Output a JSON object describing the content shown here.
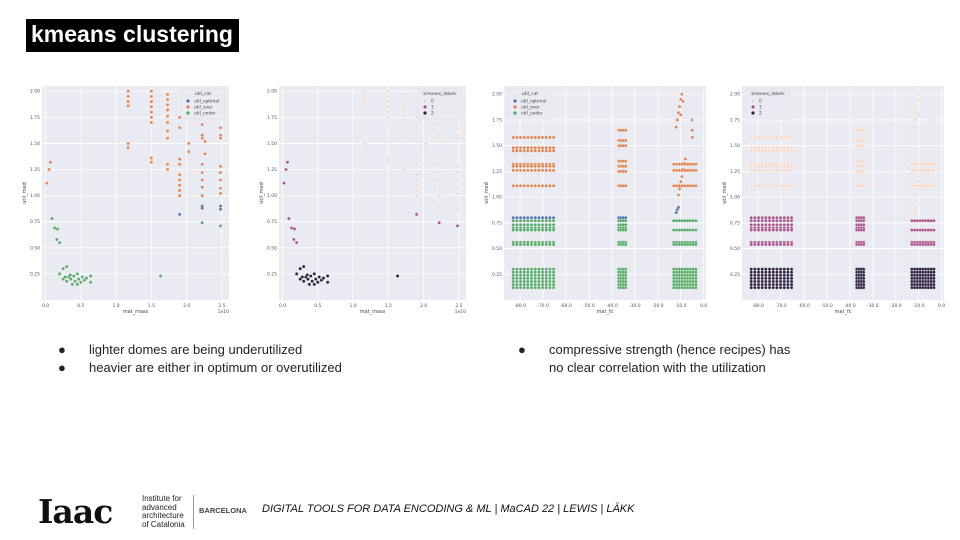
{
  "title": "kmeans clustering",
  "bullets_left": [
    "lighter domes are being underutilized",
    "heavier are either in optimum or overutilized"
  ],
  "bullets_right": [
    "compressive strength (hence recipes) has no clear correlation with the utilization"
  ],
  "bullet_symbol": "●",
  "footer": {
    "logo": "Iaac",
    "institute": [
      "Institute for",
      "advanced",
      "architecture",
      "of Catalonia"
    ],
    "city": "BARCELONA",
    "course": "DIGITAL TOOLS FOR DATA ENCODING & ML | MaCAD 22 | LEWIS | LÄKK"
  },
  "colors": {
    "util_optimal": "#4c72b0",
    "util_over": "#dd8452",
    "util_under": "#55a868",
    "k0": "#f5d6c6",
    "k1": "#a8558a",
    "k2": "#2d1e3e",
    "bg": "#eaeaf2"
  },
  "chart_data": [
    {
      "type": "scatter",
      "xlabel": "mat_mass",
      "ylabel": "util_med",
      "xlim": [
        -0.05,
        2.6
      ],
      "ylim": [
        0,
        2.05
      ],
      "xticks": [
        0.0,
        0.5,
        1.0,
        1.5,
        2.0,
        2.5
      ],
      "yticks": [
        0.25,
        0.5,
        0.75,
        1.0,
        1.25,
        1.5,
        1.75,
        2.0
      ],
      "corner_label": "1e10",
      "legend_title": "util_cat",
      "legend": [
        "util_optimal",
        "util_over",
        "util_under"
      ],
      "legend_pos": "top-right",
      "hue": "cat",
      "points": [
        [
          0.02,
          1.12,
          "util_over"
        ],
        [
          0.05,
          1.25,
          "util_over"
        ],
        [
          0.07,
          1.32,
          "util_over"
        ],
        [
          0.09,
          0.78,
          "util_under"
        ],
        [
          0.13,
          0.69,
          "util_under"
        ],
        [
          0.17,
          0.68,
          "util_under"
        ],
        [
          0.16,
          0.58,
          "util_under"
        ],
        [
          0.2,
          0.55,
          "util_under"
        ],
        [
          0.2,
          0.25,
          "util_under"
        ],
        [
          0.25,
          0.3,
          "util_under"
        ],
        [
          0.3,
          0.32,
          "util_under"
        ],
        [
          0.25,
          0.2,
          "util_under"
        ],
        [
          0.3,
          0.18,
          "util_under"
        ],
        [
          0.33,
          0.22,
          "util_under"
        ],
        [
          0.36,
          0.2,
          "util_under"
        ],
        [
          0.38,
          0.15,
          "util_under"
        ],
        [
          0.4,
          0.23,
          "util_under"
        ],
        [
          0.42,
          0.18,
          "util_under"
        ],
        [
          0.45,
          0.25,
          "util_under"
        ],
        [
          0.47,
          0.2,
          "util_under"
        ],
        [
          0.5,
          0.17,
          "util_under"
        ],
        [
          0.52,
          0.22,
          "util_under"
        ],
        [
          0.55,
          0.19,
          "util_under"
        ],
        [
          0.58,
          0.21,
          "util_under"
        ],
        [
          0.64,
          0.23,
          "util_under"
        ],
        [
          0.64,
          0.17,
          "util_under"
        ],
        [
          0.35,
          0.24,
          "util_under"
        ],
        [
          0.28,
          0.22,
          "util_under"
        ],
        [
          0.45,
          0.15,
          "util_under"
        ],
        [
          1.63,
          0.23,
          "util_under"
        ],
        [
          2.22,
          0.74,
          "util_under"
        ],
        [
          2.48,
          0.71,
          "util_under"
        ],
        [
          1.17,
          2.0,
          "util_over"
        ],
        [
          1.17,
          1.95,
          "util_over"
        ],
        [
          1.17,
          1.9,
          "util_over"
        ],
        [
          1.17,
          1.86,
          "util_over"
        ],
        [
          1.17,
          1.5,
          "util_over"
        ],
        [
          1.17,
          1.46,
          "util_over"
        ],
        [
          1.5,
          2.0,
          "util_over"
        ],
        [
          1.5,
          1.95,
          "util_over"
        ],
        [
          1.5,
          1.9,
          "util_over"
        ],
        [
          1.5,
          1.85,
          "util_over"
        ],
        [
          1.5,
          1.8,
          "util_over"
        ],
        [
          1.5,
          1.75,
          "util_over"
        ],
        [
          1.5,
          1.7,
          "util_over"
        ],
        [
          1.5,
          1.36,
          "util_over"
        ],
        [
          1.5,
          1.32,
          "util_over"
        ],
        [
          1.73,
          1.97,
          "util_over"
        ],
        [
          1.73,
          1.92,
          "util_over"
        ],
        [
          1.73,
          1.87,
          "util_over"
        ],
        [
          1.73,
          1.82,
          "util_over"
        ],
        [
          1.73,
          1.76,
          "util_over"
        ],
        [
          1.73,
          1.7,
          "util_over"
        ],
        [
          1.73,
          1.62,
          "util_over"
        ],
        [
          1.73,
          1.55,
          "util_over"
        ],
        [
          1.73,
          1.3,
          "util_over"
        ],
        [
          1.73,
          1.25,
          "util_over"
        ],
        [
          1.9,
          1.75,
          "util_over"
        ],
        [
          1.9,
          1.65,
          "util_over"
        ],
        [
          1.9,
          1.35,
          "util_over"
        ],
        [
          1.9,
          1.3,
          "util_over"
        ],
        [
          1.9,
          1.2,
          "util_over"
        ],
        [
          1.9,
          1.15,
          "util_over"
        ],
        [
          1.9,
          1.1,
          "util_over"
        ],
        [
          1.9,
          1.05,
          "util_over"
        ],
        [
          1.9,
          1.0,
          "util_over"
        ],
        [
          2.03,
          1.42,
          "util_over"
        ],
        [
          2.03,
          1.5,
          "util_over"
        ],
        [
          2.22,
          1.68,
          "util_over"
        ],
        [
          2.22,
          1.58,
          "util_over"
        ],
        [
          2.22,
          1.55,
          "util_over"
        ],
        [
          2.22,
          1.3,
          "util_over"
        ],
        [
          2.22,
          1.22,
          "util_over"
        ],
        [
          2.22,
          1.15,
          "util_over"
        ],
        [
          2.22,
          1.08,
          "util_over"
        ],
        [
          2.22,
          1.0,
          "util_over"
        ],
        [
          2.26,
          1.4,
          "util_over"
        ],
        [
          2.26,
          1.52,
          "util_over"
        ],
        [
          2.48,
          1.65,
          "util_over"
        ],
        [
          2.48,
          1.58,
          "util_over"
        ],
        [
          2.48,
          1.55,
          "util_over"
        ],
        [
          2.48,
          1.28,
          "util_over"
        ],
        [
          2.48,
          1.22,
          "util_over"
        ],
        [
          2.48,
          1.15,
          "util_over"
        ],
        [
          2.48,
          1.07,
          "util_over"
        ],
        [
          2.48,
          1.02,
          "util_over"
        ],
        [
          1.9,
          0.82,
          "util_optimal"
        ],
        [
          2.22,
          0.9,
          "util_optimal"
        ],
        [
          2.22,
          0.88,
          "util_optimal"
        ],
        [
          2.48,
          0.9,
          "util_optimal"
        ],
        [
          2.48,
          0.87,
          "util_optimal"
        ]
      ]
    },
    {
      "type": "scatter",
      "xlabel": "mat_mass",
      "ylabel": "util_med",
      "xlim": [
        -0.05,
        2.6
      ],
      "ylim": [
        0,
        2.05
      ],
      "xticks": [
        0.0,
        0.5,
        1.0,
        1.5,
        2.0,
        2.5
      ],
      "yticks": [
        0.25,
        0.5,
        0.75,
        1.0,
        1.25,
        1.5,
        1.75,
        2.0
      ],
      "corner_label": "1e10",
      "legend_title": "kmeans_labels",
      "legend": [
        "0",
        "1",
        "2"
      ],
      "legend_pos": "top-right",
      "hue": "kmeans",
      "same_points_as": 0
    },
    {
      "type": "scatter",
      "xlabel": "mat_fc",
      "ylabel": "util_med",
      "xlim": [
        -87,
        1
      ],
      "ylim": [
        0,
        2.08
      ],
      "xticks": [
        -80,
        -70,
        -60,
        -50,
        -40,
        -30,
        -20,
        -10,
        0
      ],
      "yticks": [
        0.25,
        0.5,
        0.75,
        1.0,
        1.25,
        1.5,
        1.75,
        2.0
      ],
      "legend_title": "util_cat",
      "legend": [
        "util_optimal",
        "util_over",
        "util_under"
      ],
      "legend_pos": "top-left",
      "hue": "cat",
      "segments": {
        "L": [
          -83,
          -65,
          1.6
        ],
        "M": [
          -37,
          -34,
          1
        ],
        "R": [
          -13,
          -3,
          1.2
        ]
      },
      "rows": [
        [
          1.58,
          "util_over",
          "L"
        ],
        [
          1.48,
          "util_over",
          "L"
        ],
        [
          1.45,
          "util_over",
          "L"
        ],
        [
          1.32,
          "util_over",
          "LR"
        ],
        [
          1.3,
          "util_over",
          "L"
        ],
        [
          1.26,
          "util_over",
          "LR"
        ],
        [
          1.11,
          "util_over",
          "LMR"
        ],
        [
          1.65,
          "util_over",
          "M"
        ],
        [
          1.55,
          "util_over",
          "M"
        ],
        [
          1.5,
          "util_over",
          "M"
        ],
        [
          1.35,
          "util_over",
          "M"
        ],
        [
          1.3,
          "util_over",
          "M"
        ],
        [
          1.25,
          "util_over",
          "M"
        ],
        [
          0.8,
          "util_optimal",
          "LM"
        ],
        [
          0.77,
          "util_under",
          "LMR"
        ],
        [
          0.73,
          "util_under",
          "LM"
        ],
        [
          0.7,
          "util_under",
          "LM"
        ],
        [
          0.68,
          "util_under",
          "LMR"
        ],
        [
          0.56,
          "util_under",
          "LMR"
        ],
        [
          0.54,
          "util_under",
          "LMR"
        ],
        [
          0.3,
          "util_under",
          "LMR"
        ],
        [
          0.27,
          "util_under",
          "LMR"
        ],
        [
          0.24,
          "util_under",
          "LMR"
        ],
        [
          0.21,
          "util_under",
          "LMR"
        ],
        [
          0.18,
          "util_under",
          "LMR"
        ],
        [
          0.15,
          "util_under",
          "LMR"
        ],
        [
          0.12,
          "util_under",
          "LMR"
        ]
      ],
      "points": [
        [
          -12,
          1.68,
          "util_over"
        ],
        [
          -11.5,
          1.75,
          "util_over"
        ],
        [
          -11,
          1.82,
          "util_over"
        ],
        [
          -10.5,
          1.88,
          "util_over"
        ],
        [
          -10,
          1.95,
          "util_over"
        ],
        [
          -9.5,
          2.0,
          "util_over"
        ],
        [
          -9,
          1.93,
          "util_over"
        ],
        [
          -10,
          1.8,
          "util_over"
        ],
        [
          -5,
          1.75,
          "util_over"
        ],
        [
          -5,
          1.65,
          "util_over"
        ],
        [
          -5,
          1.58,
          "util_over"
        ],
        [
          -11,
          1.02,
          "util_over"
        ],
        [
          -10.5,
          1.08,
          "util_over"
        ],
        [
          -10,
          1.15,
          "util_over"
        ],
        [
          -9.5,
          1.2,
          "util_over"
        ],
        [
          -9,
          1.27,
          "util_over"
        ],
        [
          -8.5,
          1.33,
          "util_over"
        ],
        [
          -8,
          1.37,
          "util_over"
        ],
        [
          -12,
          0.85,
          "util_optimal"
        ],
        [
          -11.5,
          0.88,
          "util_optimal"
        ],
        [
          -11,
          0.9,
          "util_optimal"
        ]
      ]
    },
    {
      "type": "scatter",
      "xlabel": "mat_fc",
      "ylabel": "util_med",
      "xlim": [
        -87,
        1
      ],
      "ylim": [
        0,
        2.08
      ],
      "xticks": [
        -80,
        -70,
        -60,
        -50,
        -40,
        -30,
        -20,
        -10,
        0
      ],
      "yticks": [
        0.25,
        0.5,
        0.75,
        1.0,
        1.25,
        1.5,
        1.75,
        2.0
      ],
      "legend_title": "kmeans_labels",
      "legend": [
        "0",
        "1",
        "2"
      ],
      "legend_pos": "top-left",
      "hue": "kmeans",
      "same_points_as": 2
    }
  ]
}
